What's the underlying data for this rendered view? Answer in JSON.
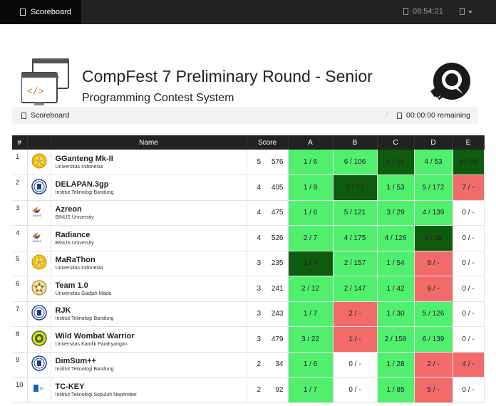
{
  "topbar": {
    "tab_label": "Scoreboard",
    "clock": "08:54:21"
  },
  "header": {
    "title": "CompFest 7 Preliminary Round - Senior",
    "subtitle": "Programming Contest System"
  },
  "breadcrumb": {
    "label": "Scoreboard",
    "separator": "/",
    "remaining": "00:00:00 remaining"
  },
  "scoreboard": {
    "columns": [
      "#",
      "",
      "Name",
      "Score",
      "A",
      "B",
      "C",
      "D",
      "E"
    ],
    "rows": [
      {
        "rank": "1",
        "name": "GGanteng Mk-II",
        "uni": "Universitas Indonesia",
        "solved": "5",
        "penalty": "576",
        "logo": "ui",
        "problems": [
          {
            "v": "1 / 6",
            "s": "ac"
          },
          {
            "v": "6 / 106",
            "s": "ac"
          },
          {
            "v": "1 / 16",
            "s": "first"
          },
          {
            "v": "4 / 53",
            "s": "ac"
          },
          {
            "v": "8 / 95",
            "s": "first"
          }
        ]
      },
      {
        "rank": "2",
        "name": "DELAPAN.3gp",
        "uni": "Institut Teknologi Bandung",
        "solved": "4",
        "penalty": "405",
        "logo": "itb",
        "problems": [
          {
            "v": "1 / 9",
            "s": "ac"
          },
          {
            "v": "2 / 71",
            "s": "first"
          },
          {
            "v": "1 / 53",
            "s": "ac"
          },
          {
            "v": "5 / 172",
            "s": "ac"
          },
          {
            "v": "7 / -",
            "s": "wa"
          }
        ]
      },
      {
        "rank": "3",
        "name": "Azreon",
        "uni": "BINUS University",
        "solved": "4",
        "penalty": "475",
        "logo": "binus",
        "problems": [
          {
            "v": "1 / 6",
            "s": "ac"
          },
          {
            "v": "5 / 121",
            "s": "ac"
          },
          {
            "v": "3 / 29",
            "s": "ac"
          },
          {
            "v": "4 / 139",
            "s": "ac"
          },
          {
            "v": "0 / -",
            "s": "na"
          }
        ]
      },
      {
        "rank": "4",
        "name": "Radiance",
        "uni": "BINUS University",
        "solved": "4",
        "penalty": "526",
        "logo": "binus",
        "problems": [
          {
            "v": "2 / 7",
            "s": "ac"
          },
          {
            "v": "4 / 175",
            "s": "ac"
          },
          {
            "v": "4 / 126",
            "s": "ac"
          },
          {
            "v": "3 / 38",
            "s": "first"
          },
          {
            "v": "0 / -",
            "s": "na"
          }
        ]
      },
      {
        "rank": "5",
        "name": "MaRaThon",
        "uni": "Universitas Indonesia",
        "solved": "3",
        "penalty": "235",
        "logo": "ui",
        "problems": [
          {
            "v": "1 / 4",
            "s": "first"
          },
          {
            "v": "2 / 157",
            "s": "ac"
          },
          {
            "v": "1 / 54",
            "s": "ac"
          },
          {
            "v": "9 / -",
            "s": "wa"
          },
          {
            "v": "0 / -",
            "s": "na"
          }
        ]
      },
      {
        "rank": "6",
        "name": "Team 1.0",
        "uni": "Universitas Gadjah Mada",
        "solved": "3",
        "penalty": "241",
        "logo": "ugm",
        "problems": [
          {
            "v": "2 / 12",
            "s": "ac"
          },
          {
            "v": "2 / 147",
            "s": "ac"
          },
          {
            "v": "1 / 42",
            "s": "ac"
          },
          {
            "v": "9 / -",
            "s": "wa"
          },
          {
            "v": "0 / -",
            "s": "na"
          }
        ]
      },
      {
        "rank": "7",
        "name": "RJK",
        "uni": "Institut Teknologi Bandung",
        "solved": "3",
        "penalty": "243",
        "logo": "itb",
        "problems": [
          {
            "v": "1 / 7",
            "s": "ac"
          },
          {
            "v": "2 / -",
            "s": "wa"
          },
          {
            "v": "1 / 30",
            "s": "ac"
          },
          {
            "v": "5 / 126",
            "s": "ac"
          },
          {
            "v": "0 / -",
            "s": "na"
          }
        ]
      },
      {
        "rank": "8",
        "name": "Wild Wombat Warrior",
        "uni": "Universitas Katolik Parahyangan",
        "solved": "3",
        "penalty": "479",
        "logo": "unpar",
        "problems": [
          {
            "v": "3 / 22",
            "s": "ac"
          },
          {
            "v": "1 / -",
            "s": "wa"
          },
          {
            "v": "2 / 158",
            "s": "ac"
          },
          {
            "v": "6 / 139",
            "s": "ac"
          },
          {
            "v": "0 / -",
            "s": "na"
          }
        ]
      },
      {
        "rank": "9",
        "name": "DimSum++",
        "uni": "Institut Teknologi Bandung",
        "solved": "2",
        "penalty": "34",
        "logo": "itb",
        "problems": [
          {
            "v": "1 / 6",
            "s": "ac"
          },
          {
            "v": "0 / -",
            "s": "na"
          },
          {
            "v": "1 / 28",
            "s": "ac"
          },
          {
            "v": "2 / -",
            "s": "wa"
          },
          {
            "v": "4 / -",
            "s": "wa"
          }
        ]
      },
      {
        "rank": "10",
        "name": "TC-KEY",
        "uni": "Institut Teknologi Sepuluh Nopember",
        "solved": "2",
        "penalty": "92",
        "logo": "its",
        "problems": [
          {
            "v": "1 / 7",
            "s": "ac"
          },
          {
            "v": "0 / -",
            "s": "na"
          },
          {
            "v": "1 / 85",
            "s": "ac"
          },
          {
            "v": "5 / -",
            "s": "wa"
          },
          {
            "v": "0 / -",
            "s": "na"
          }
        ]
      }
    ]
  }
}
